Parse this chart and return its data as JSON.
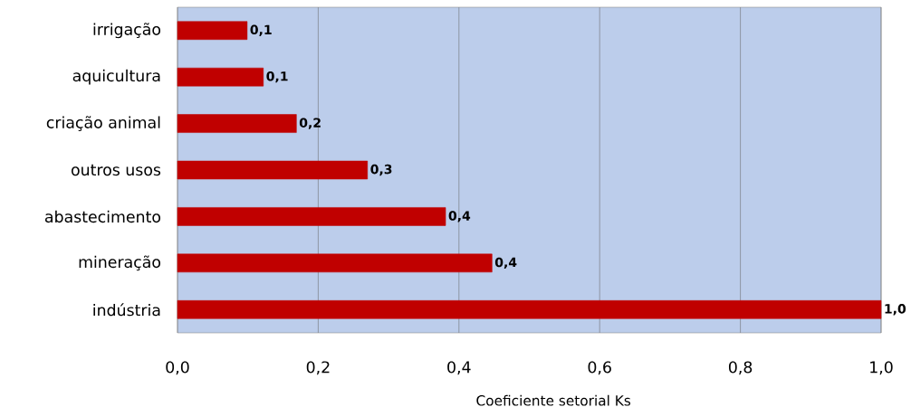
{
  "chart_data": {
    "type": "bar",
    "orientation": "horizontal",
    "categories": [
      "irrigação",
      "aquicultura",
      "criação animal",
      "outros usos",
      "abastecimento",
      "mineração",
      "indústria"
    ],
    "values": [
      0.099,
      0.122,
      0.169,
      0.27,
      0.381,
      0.447,
      1.0
    ],
    "value_labels": [
      "0,1",
      "0,1",
      "0,2",
      "0,3",
      "0,4",
      "0,4",
      "1,0"
    ],
    "color": "#c00000",
    "xlabel": "Coeficiente  setorial  Ks",
    "xlim": [
      0,
      1
    ],
    "xticks": [
      {
        "value": 0,
        "label": "0,0"
      },
      {
        "value": 0.2,
        "label": "0,2"
      },
      {
        "value": 0.4,
        "label": "0,4"
      },
      {
        "value": 0.6,
        "label": "0,6"
      },
      {
        "value": 0.8,
        "label": "0,8"
      },
      {
        "value": 1,
        "label": "1,0"
      }
    ],
    "grid": "x"
  }
}
